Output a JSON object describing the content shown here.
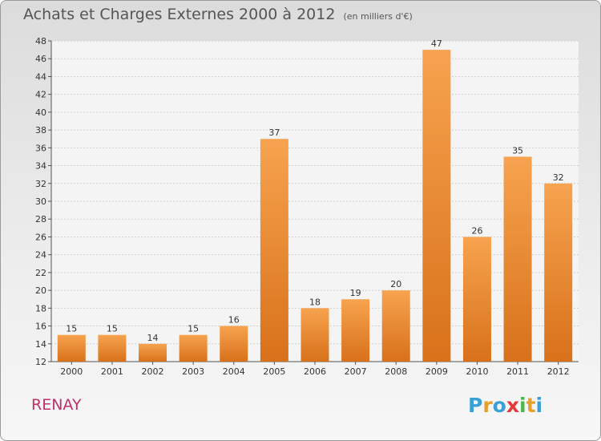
{
  "chart_data": {
    "type": "bar",
    "title": "Achats et Charges Externes 2000 à 2012",
    "subtitle": "(en milliers d'€)",
    "categories": [
      "2000",
      "2001",
      "2002",
      "2003",
      "2004",
      "2005",
      "2006",
      "2007",
      "2008",
      "2009",
      "2010",
      "2011",
      "2012"
    ],
    "values": [
      15,
      15,
      14,
      15,
      16,
      37,
      18,
      19,
      20,
      47,
      26,
      35,
      32
    ],
    "ylim": [
      12,
      48
    ],
    "yticks": [
      12,
      14,
      16,
      18,
      20,
      22,
      24,
      26,
      28,
      30,
      32,
      34,
      36,
      38,
      40,
      42,
      44,
      46,
      48
    ],
    "grid": true,
    "bar_color": "#f08a2e",
    "xlabel": "",
    "ylabel": ""
  },
  "footer": {
    "commune": "RENAY",
    "logo_letters": [
      "P",
      "r",
      "o",
      "x",
      "i",
      "t",
      "i"
    ],
    "logo_colors": [
      "#3aa0d8",
      "#e8a02a",
      "#3aa0d8",
      "#e23a3a",
      "#4cb84a",
      "#e8a02a",
      "#3aa0d8"
    ]
  }
}
